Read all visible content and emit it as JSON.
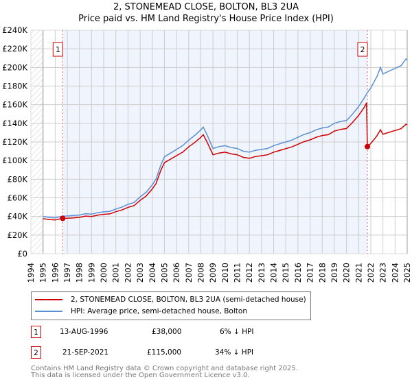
{
  "title_line1": "2, STONEMEAD CLOSE, BOLTON, BL3 2UA",
  "title_line2": "Price paid vs. HM Land Registry's House Price Index (HPI)",
  "colors": {
    "property": "#cc0000",
    "hpi": "#5b8fd4",
    "shade": "#f0f4fd",
    "grid": "#cccccc"
  },
  "chart_data": {
    "type": "line",
    "title": "2, STONEMEAD CLOSE, BOLTON, BL3 2UA — Price paid vs. HM Land Registry's House Price Index (HPI)",
    "xlim": [
      1994,
      2025
    ],
    "ylim": [
      0,
      240000
    ],
    "x_ticks": [
      "1994",
      "1995",
      "1996",
      "1997",
      "1998",
      "1999",
      "2000",
      "2001",
      "2002",
      "2003",
      "2004",
      "2005",
      "2006",
      "2007",
      "2008",
      "2009",
      "2010",
      "2011",
      "2012",
      "2013",
      "2014",
      "2015",
      "2016",
      "2017",
      "2018",
      "2019",
      "2020",
      "2021",
      "2022",
      "2023",
      "2024",
      "2025"
    ],
    "y_ticks": [
      {
        "v": 0,
        "label": "£0"
      },
      {
        "v": 20000,
        "label": "£20K"
      },
      {
        "v": 40000,
        "label": "£40K"
      },
      {
        "v": 60000,
        "label": "£60K"
      },
      {
        "v": 80000,
        "label": "£80K"
      },
      {
        "v": 100000,
        "label": "£100K"
      },
      {
        "v": 120000,
        "label": "£120K"
      },
      {
        "v": 140000,
        "label": "£140K"
      },
      {
        "v": 160000,
        "label": "£160K"
      },
      {
        "v": 180000,
        "label": "£180K"
      },
      {
        "v": 200000,
        "label": "£200K"
      },
      {
        "v": 220000,
        "label": "£220K"
      },
      {
        "v": 240000,
        "label": "£240K"
      }
    ],
    "grid": true,
    "legend_position": "below",
    "series": [
      {
        "name": "2, STONEMEAD CLOSE, BOLTON, BL3 2UA (semi-detached house)",
        "color": "#cc0000",
        "x": [
          1995,
          1995.5,
          1996,
          1996.62,
          1997,
          1997.5,
          1998,
          1998.5,
          1999,
          1999.5,
          2000,
          2000.5,
          2001,
          2001.5,
          2002,
          2002.5,
          2003,
          2003.5,
          2004,
          2004.3,
          2004.7,
          2005,
          2005.5,
          2006,
          2006.5,
          2007,
          2007.5,
          2008,
          2008.2,
          2008.5,
          2009,
          2009.5,
          2010,
          2010.5,
          2011,
          2011.5,
          2012,
          2012.5,
          2013,
          2013.5,
          2014,
          2014.5,
          2015,
          2015.5,
          2016,
          2016.5,
          2017,
          2017.5,
          2018,
          2018.5,
          2019,
          2019.5,
          2020,
          2020.5,
          2021,
          2021.5,
          2021.65,
          2021.72,
          2022,
          2022.5,
          2022.8,
          2023,
          2023.5,
          2024,
          2024.5,
          2024.9,
          2025
        ],
        "y": [
          37600,
          36700,
          36200,
          38000,
          38100,
          38500,
          39000,
          40400,
          40000,
          41400,
          42300,
          42800,
          45100,
          47000,
          49800,
          51700,
          57300,
          62000,
          69600,
          75200,
          89300,
          97800,
          101500,
          105300,
          109000,
          114700,
          119400,
          125000,
          127800,
          120300,
          106200,
          108100,
          109000,
          107200,
          106200,
          103400,
          102500,
          104300,
          105300,
          106200,
          109000,
          110900,
          112800,
          114700,
          117500,
          120300,
          122200,
          125000,
          126900,
          127800,
          131600,
          133500,
          134400,
          141000,
          148500,
          157900,
          162000,
          115000,
          118400,
          126400,
          133000,
          128300,
          130300,
          132300,
          134300,
          139000,
          138300
        ]
      },
      {
        "name": "HPI: Average price, semi-detached house, Bolton",
        "color": "#5b8fd4",
        "x": [
          1995,
          1995.5,
          1996,
          1996.62,
          1997,
          1997.5,
          1998,
          1998.5,
          1999,
          1999.5,
          2000,
          2000.5,
          2001,
          2001.5,
          2002,
          2002.5,
          2003,
          2003.5,
          2004,
          2004.3,
          2004.7,
          2005,
          2005.5,
          2006,
          2006.5,
          2007,
          2007.5,
          2008,
          2008.2,
          2008.5,
          2009,
          2009.5,
          2010,
          2010.5,
          2011,
          2011.5,
          2012,
          2012.5,
          2013,
          2013.5,
          2014,
          2014.5,
          2015,
          2015.5,
          2016,
          2016.5,
          2017,
          2017.5,
          2018,
          2018.5,
          2019,
          2019.5,
          2020,
          2020.5,
          2021,
          2021.5,
          2021.72,
          2022,
          2022.5,
          2022.8,
          2023,
          2023.5,
          2024,
          2024.5,
          2024.9,
          2025
        ],
        "y": [
          40000,
          39000,
          38500,
          40400,
          40500,
          41000,
          41500,
          43000,
          42500,
          44000,
          45000,
          45500,
          48000,
          50000,
          53000,
          55000,
          61000,
          66000,
          74000,
          80000,
          95000,
          104000,
          108000,
          112000,
          116000,
          122000,
          127000,
          133000,
          136000,
          128000,
          113000,
          115000,
          116000,
          114000,
          113000,
          110000,
          109000,
          111000,
          112000,
          113000,
          116000,
          118000,
          120000,
          122000,
          125000,
          128000,
          130000,
          133000,
          135000,
          136000,
          140000,
          142000,
          143000,
          150000,
          158000,
          168000,
          173000,
          178000,
          190000,
          200000,
          193000,
          196000,
          199000,
          202000,
          209000,
          208000
        ]
      }
    ],
    "annotations": [
      {
        "label": "1",
        "x": 1996.62,
        "y": 38000
      },
      {
        "label": "2",
        "x": 2021.72,
        "y": 115000
      }
    ]
  },
  "legend": {
    "property_label": "2, STONEMEAD CLOSE, BOLTON, BL3 2UA (semi-detached house)",
    "hpi_label": "HPI: Average price, semi-detached house, Bolton"
  },
  "sales": [
    {
      "num": "1",
      "date": "13-AUG-1996",
      "price": "£38,000",
      "hpi": "6% ↓ HPI"
    },
    {
      "num": "2",
      "date": "21-SEP-2021",
      "price": "£115,000",
      "hpi": "34% ↓ HPI"
    }
  ],
  "footer": {
    "line1": "Contains HM Land Registry data © Crown copyright and database right 2025.",
    "line2": "This data is licensed under the Open Government Licence v3.0."
  }
}
